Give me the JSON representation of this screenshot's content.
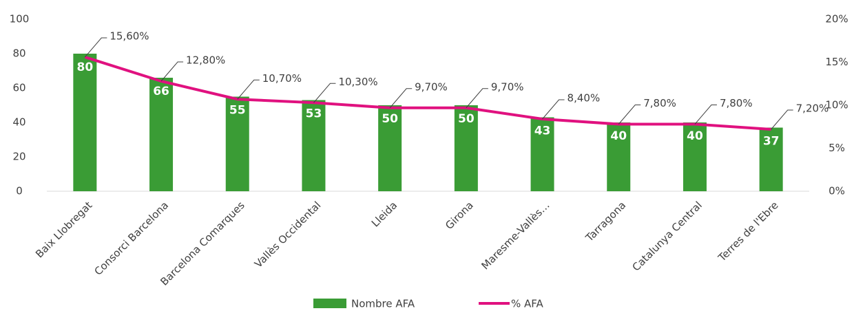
{
  "chart_data": {
    "type": "bar",
    "categories": [
      "Baix Llobregat",
      "Consorci Barcelona",
      "Barcelona Comarques",
      "Vallès Occidental",
      "Lleida",
      "Girona",
      "Maresme-Vallès…",
      "Tarragona",
      "Catalunya Central",
      "Terres de l'Ebre"
    ],
    "series": [
      {
        "name": "Nombre AFA",
        "type": "bar",
        "color": "#3a9c35",
        "values": [
          80,
          66,
          55,
          53,
          50,
          50,
          43,
          40,
          40,
          37
        ]
      },
      {
        "name": "% AFA",
        "type": "line",
        "axis": "y2",
        "color": "#e0117f",
        "values": [
          15.6,
          12.8,
          10.7,
          10.3,
          9.7,
          9.7,
          8.4,
          7.8,
          7.8,
          7.2
        ],
        "value_labels": [
          "15,60%",
          "12,80%",
          "10,70%",
          "10,30%",
          "9,70%",
          "9,70%",
          "8,40%",
          "7,80%",
          "7,80%",
          "7,20%"
        ]
      }
    ],
    "ylim": [
      0,
      100
    ],
    "yticks": [
      0,
      20,
      40,
      60,
      80,
      100
    ],
    "y2lim": [
      0,
      20
    ],
    "y2ticks": [
      {
        "value": 0,
        "label": "0%"
      },
      {
        "value": 5,
        "label": "5%"
      },
      {
        "value": 10,
        "label": "10%"
      },
      {
        "value": 15,
        "label": "15%"
      },
      {
        "value": 20,
        "label": "20%"
      }
    ],
    "legend": "bottom"
  }
}
